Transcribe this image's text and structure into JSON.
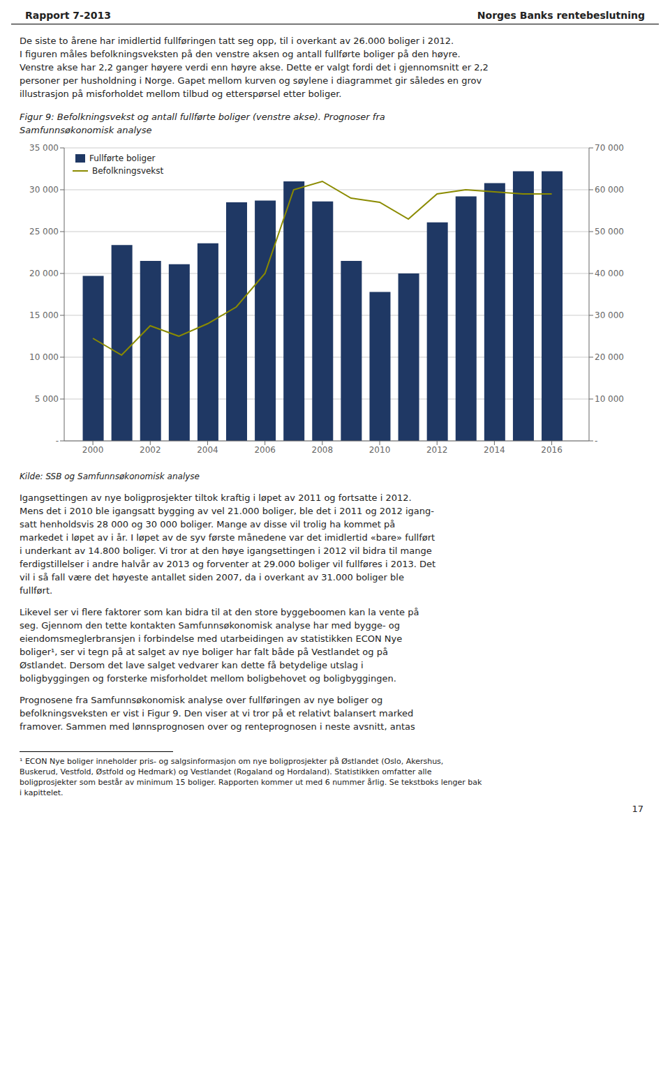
{
  "header_left": "Rapport 7-2013",
  "header_right": "Norges Banks rentebeslutning",
  "body_above": [
    "De siste to årene har imidlertid fullføringen tatt seg opp, til i overkant av 26.000 boliger i 2012.",
    "I figuren måles befolkningsveksten på den venstre aksen og antall fullførte boliger på den høyre.",
    "Venstre akse har 2,2 ganger høyere verdi enn høyre akse. Dette er valgt fordi det i gjennomsnitt er 2,2",
    "personer per husholdning i Norge. Gapet mellom kurven og søylene i diagrammet gir således en grov",
    "illustrasjon på misforholdet mellom tilbud og etterspørsel etter boliger."
  ],
  "chart_data": {
    "type": "bar",
    "title": "Figur 9: Befolkningsvekst og antall fullførte boliger (venstre akse). Prognoser fra Samfunnsøkonomisk analyse",
    "x": [
      2000,
      2001,
      2002,
      2003,
      2004,
      2005,
      2006,
      2007,
      2008,
      2009,
      2010,
      2011,
      2012,
      2013,
      2014,
      2015,
      2016
    ],
    "xlim": [
      1999,
      2017.3
    ],
    "xticks": [
      2000,
      2002,
      2004,
      2006,
      2008,
      2010,
      2012,
      2014,
      2016
    ],
    "series": [
      {
        "name": "Fullførte boliger",
        "type": "bar",
        "color": "#1f3864",
        "values": [
          19700,
          23400,
          21500,
          21100,
          23600,
          28500,
          28700,
          31000,
          28600,
          21500,
          17800,
          20000,
          26100,
          29200,
          30800,
          32200,
          32200
        ]
      },
      {
        "name": "Befolkningsvekst",
        "type": "line",
        "axis": "y2",
        "color": "#8B8B00",
        "values": [
          24500,
          20500,
          27500,
          25000,
          28000,
          32000,
          40000,
          60000,
          62000,
          58000,
          57000,
          53000,
          59000,
          60000,
          59500,
          59000,
          59000
        ]
      }
    ],
    "ylim": [
      0,
      35000
    ],
    "yticks": [
      {
        "value": 0,
        "label": "-"
      },
      {
        "value": 5000,
        "label": "5 000"
      },
      {
        "value": 10000,
        "label": "10 000"
      },
      {
        "value": 15000,
        "label": "15 000"
      },
      {
        "value": 20000,
        "label": "20 000"
      },
      {
        "value": 25000,
        "label": "25 000"
      },
      {
        "value": 30000,
        "label": "30 000"
      },
      {
        "value": 35000,
        "label": "35 000"
      }
    ],
    "y2lim": [
      0,
      70000
    ],
    "y2ticks": [
      {
        "value": 0,
        "label": "-"
      },
      {
        "value": 10000,
        "label": "10 000"
      },
      {
        "value": 20000,
        "label": "20 000"
      },
      {
        "value": 30000,
        "label": "30 000"
      },
      {
        "value": 40000,
        "label": "40 000"
      },
      {
        "value": 50000,
        "label": "50 000"
      },
      {
        "value": 60000,
        "label": "60 000"
      },
      {
        "value": 70000,
        "label": "70 000"
      }
    ],
    "grid": true,
    "legend": "upper left"
  },
  "source": "Kilde: SSB og Samfunnsøkonomisk analyse",
  "body_below": [
    [
      "Igangsettingen av nye boligprosjekter tiltok kraftig i løpet av 2011 og fortsatte i 2012.",
      "Mens det i 2010 ble igangsatt bygging av vel 21.000 boliger, ble det i 2011 og 2012 igang-",
      "satt henholdsvis 28 000 og 30 000 boliger. Mange av disse vil trolig ha kommet på",
      "markedet i løpet av i år. I løpet av de syv første månedene var det imidlertid «bare» fullført",
      "i underkant av 14.800 boliger. Vi tror at den høye igangsettingen i 2012 vil bidra til mange",
      "ferdigstillelser i andre halvår av 2013 og forventer at 29.000 boliger vil fullføres i 2013. Det",
      "vil i så fall være det høyeste antallet siden 2007, da i overkant av 31.000 boliger ble",
      "fullført."
    ],
    [
      "Likevel ser vi flere faktorer som kan bidra til at den store byggeboomen kan la vente på",
      "seg. Gjennom den tette kontakten Samfunnsøkonomisk analyse har med bygge- og",
      "eiendomsmeglerbransjen i forbindelse med utarbeidingen av statistikken ECON Nye",
      "boliger¹, ser vi tegn på at salget av nye boliger har falt både på Vestlandet og på",
      "Østlandet. Dersom det lave salget vedvarer kan dette få betydelige utslag i",
      "boligbyggingen og forsterke misforholdet mellom boligbehovet og boligbyggingen."
    ],
    [
      "Prognosene fra Samfunnsøkonomisk analyse over fullføringen av nye boliger og",
      "befolkningsveksten er vist i Figur 9. Den viser at vi tror på et relativt balansert marked",
      "framover. Sammen med lønnsprognosen over og renteprognosen i neste avsnitt, antas"
    ]
  ],
  "footnote": [
    "¹ ECON Nye boliger inneholder pris- og salgsinformasjon om nye boligprosjekter på Østlandet (Oslo, Akershus,",
    "Buskerud, Vestfold, Østfold og Hedmark) og Vestlandet (Rogaland og Hordaland). Statistikken omfatter alle",
    "boligprosjekter som består av minimum 15 boliger. Rapporten kommer ut med 6 nummer årlig. Se tekstboks lenger bak",
    "i kapittelet."
  ],
  "page_number": "17"
}
